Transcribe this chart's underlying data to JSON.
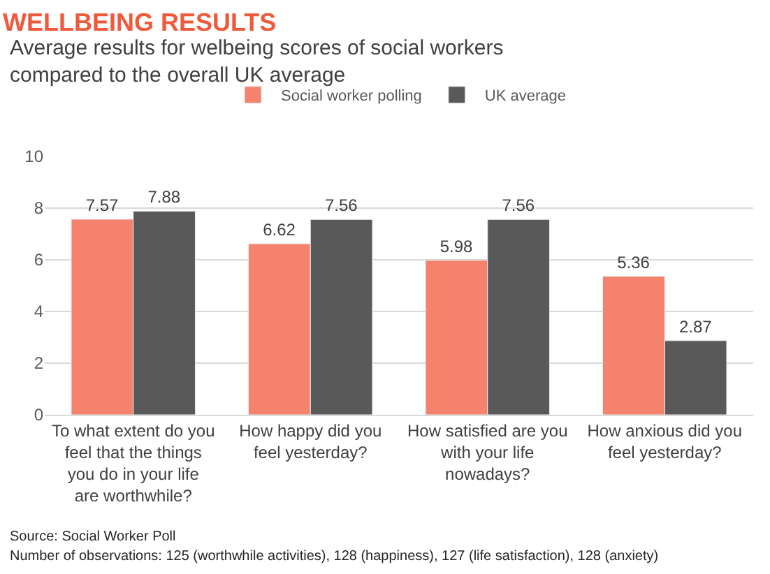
{
  "chart_data": {
    "type": "bar",
    "title": "WELLBEING RESULTS",
    "subtitle": "Average results for welbeing scores of social workers compared to the overall UK average",
    "categories": [
      "To what extent do you feel that the things you do in your life are worthwhile?",
      "How happy did you feel yesterday?",
      "How satisfied are you with your life nowadays?",
      "How anxious did you feel yesterday?"
    ],
    "series": [
      {
        "name": "Social worker polling",
        "color": "#f4826c",
        "values": [
          7.57,
          6.62,
          5.98,
          5.36
        ]
      },
      {
        "name": "UK average",
        "color": "#595959",
        "values": [
          7.88,
          7.56,
          7.56,
          2.87
        ]
      }
    ],
    "ylim": [
      0,
      10
    ],
    "yticks": [
      0,
      2,
      4,
      6,
      8,
      10
    ],
    "grid": "y",
    "legend": "top",
    "data_labels": true,
    "annotations": [
      "Source: Social Worker Poll",
      "Number of observations: 125 (worthwhile activities), 128 (happiness), 127 (life satisfaction), 128 (anxiety)"
    ]
  }
}
